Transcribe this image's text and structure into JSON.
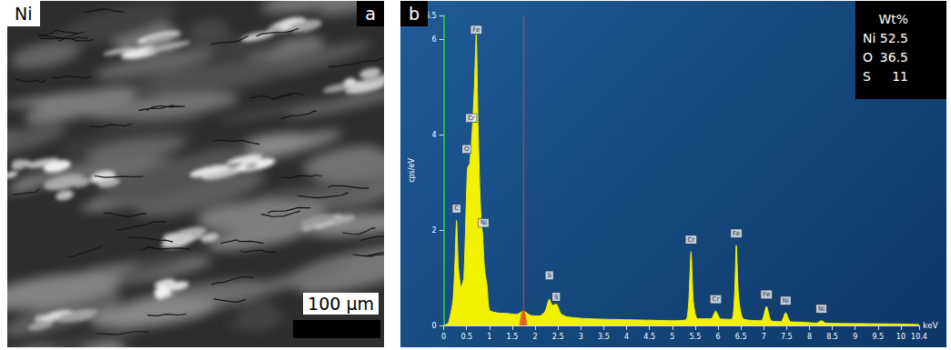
{
  "panel_a": {
    "label": "Ni",
    "letter": "a",
    "scale_bar": "100 µm"
  },
  "chart_data": {
    "type": "line",
    "letter": "b",
    "x_label": "keV",
    "y_label": "cps/eV",
    "x": [
      0,
      0.1,
      0.2,
      0.24,
      0.28,
      0.32,
      0.38,
      0.44,
      0.52,
      0.57,
      0.63,
      0.67,
      0.71,
      0.75,
      0.79,
      0.82,
      0.85,
      0.89,
      0.95,
      1.0,
      1.2,
      1.4,
      1.6,
      1.74,
      1.9,
      2.1,
      2.22,
      2.31,
      2.38,
      2.46,
      2.56,
      2.7,
      3.0,
      3.5,
      4.0,
      4.5,
      5.0,
      5.3,
      5.36,
      5.41,
      5.46,
      5.55,
      5.85,
      5.95,
      6.05,
      6.3,
      6.36,
      6.4,
      6.45,
      6.55,
      6.95,
      7.06,
      7.16,
      7.38,
      7.48,
      7.58,
      7.8,
      8.16,
      8.26,
      8.36,
      9.0,
      10.0,
      10.4
    ],
    "values": [
      0.0,
      0.05,
      0.5,
      1.2,
      2.2,
      1.2,
      0.8,
      1.0,
      3.3,
      3.4,
      4.2,
      5.0,
      6.1,
      4.2,
      2.8,
      2.2,
      1.9,
      1.2,
      0.8,
      0.32,
      0.26,
      0.25,
      0.23,
      0.3,
      0.21,
      0.2,
      0.3,
      0.55,
      0.42,
      0.45,
      0.25,
      0.18,
      0.15,
      0.13,
      0.12,
      0.11,
      0.1,
      0.12,
      0.5,
      1.55,
      0.5,
      0.14,
      0.14,
      0.3,
      0.14,
      0.13,
      0.6,
      1.68,
      0.6,
      0.14,
      0.1,
      0.4,
      0.1,
      0.08,
      0.27,
      0.08,
      0.07,
      0.05,
      0.1,
      0.05,
      0.04,
      0.03,
      0.02
    ],
    "color": "#f2f200",
    "highlight": {
      "x": [
        1.66,
        1.7,
        1.74,
        1.78,
        1.82
      ],
      "values": [
        0.0,
        0.24,
        0.32,
        0.24,
        0.0
      ],
      "color": "#e07020"
    },
    "marker_kev": 1.74,
    "peak_labels": [
      {
        "label": "C",
        "x": 0.28,
        "y": 2.45
      },
      {
        "label": "O",
        "x": 0.5,
        "y": 3.7
      },
      {
        "label": "Cr",
        "x": 0.6,
        "y": 4.35
      },
      {
        "label": "Fe",
        "x": 0.71,
        "y": 6.2
      },
      {
        "label": "Ni",
        "x": 0.87,
        "y": 2.15
      },
      {
        "label": "S",
        "x": 2.31,
        "y": 1.05
      },
      {
        "label": "S",
        "x": 2.46,
        "y": 0.6
      },
      {
        "label": "Cr",
        "x": 5.41,
        "y": 1.8
      },
      {
        "label": "Cr",
        "x": 5.95,
        "y": 0.55
      },
      {
        "label": "Fe",
        "x": 6.4,
        "y": 1.93
      },
      {
        "label": "Fe",
        "x": 7.06,
        "y": 0.65
      },
      {
        "label": "Ni",
        "x": 7.48,
        "y": 0.52
      },
      {
        "label": "Ni",
        "x": 8.26,
        "y": 0.35
      }
    ],
    "inset": {
      "header": "Wt%",
      "rows": [
        [
          "Ni",
          52.5
        ],
        [
          "O",
          36.5
        ],
        [
          "S",
          11
        ]
      ]
    },
    "xlim": [
      0,
      10.4
    ],
    "xticks": [
      0,
      0.5,
      1,
      1.5,
      2,
      2.5,
      3,
      3.5,
      4,
      4.5,
      5,
      5.5,
      6,
      6.5,
      7,
      7.5,
      8,
      8.5,
      9,
      9.5,
      10
    ],
    "ylim": [
      0,
      6.5
    ],
    "yticks": [
      0,
      2,
      4,
      6
    ],
    "grid": false
  }
}
